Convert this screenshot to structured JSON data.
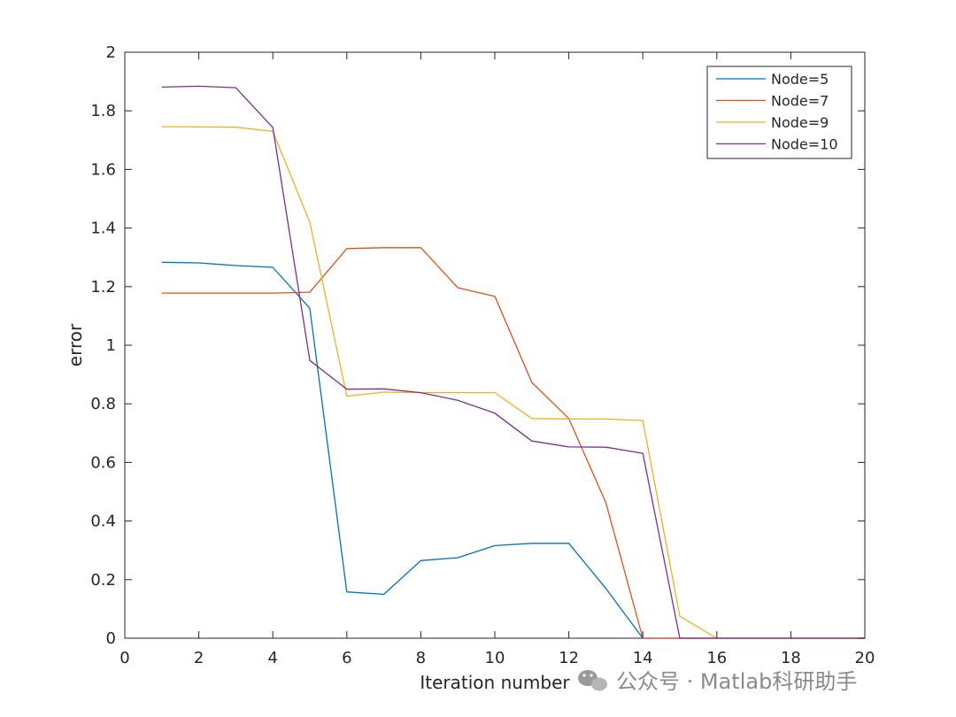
{
  "chart_data": {
    "type": "line",
    "title": "",
    "xlabel": "Iteration number",
    "ylabel": "error",
    "xlim": [
      0,
      20
    ],
    "ylim": [
      0,
      2
    ],
    "xticks": [
      0,
      2,
      4,
      6,
      8,
      10,
      12,
      14,
      16,
      18,
      20
    ],
    "yticks": [
      0,
      0.2,
      0.4,
      0.6,
      0.8,
      1,
      1.2,
      1.4,
      1.6,
      1.8,
      2
    ],
    "xtick_labels": [
      "0",
      "2",
      "4",
      "6",
      "8",
      "10",
      "12",
      "14",
      "16",
      "18",
      "20"
    ],
    "ytick_labels": [
      "0",
      "0.2",
      "0.4",
      "0.6",
      "0.8",
      "1",
      "1.2",
      "1.4",
      "1.6",
      "1.8",
      "2"
    ],
    "grid": false,
    "legend_position": "top-right",
    "x": [
      1,
      2,
      3,
      4,
      5,
      6,
      7,
      8,
      9,
      10,
      11,
      12,
      13,
      14,
      15,
      16,
      17,
      18,
      19,
      20
    ],
    "series": [
      {
        "name": "Node=5",
        "color": "#0072BD",
        "values": [
          1.283,
          1.281,
          1.272,
          1.266,
          1.126,
          0.158,
          0.15,
          0.265,
          0.275,
          0.316,
          0.324,
          0.324,
          0.17,
          0.0,
          0.0,
          0.0,
          0.0,
          0.0,
          0.0,
          0.0
        ]
      },
      {
        "name": "Node=7",
        "color": "#D95319",
        "values": [
          1.178,
          1.178,
          1.178,
          1.178,
          1.181,
          1.33,
          1.333,
          1.333,
          1.196,
          1.167,
          0.873,
          0.75,
          0.463,
          0.0,
          0.0,
          0.0,
          0.0,
          0.0,
          0.0,
          0.0
        ]
      },
      {
        "name": "Node=9",
        "color": "#EDB120",
        "values": [
          1.746,
          1.745,
          1.744,
          1.73,
          1.42,
          0.826,
          0.84,
          0.838,
          0.838,
          0.838,
          0.75,
          0.748,
          0.748,
          0.743,
          0.075,
          0.0,
          0.0,
          0.0,
          0.0,
          0.0
        ]
      },
      {
        "name": "Node=10",
        "color": "#7E2F8E",
        "values": [
          1.881,
          1.884,
          1.879,
          1.743,
          0.948,
          0.85,
          0.851,
          0.838,
          0.812,
          0.768,
          0.673,
          0.653,
          0.652,
          0.631,
          0.0,
          0.0,
          0.0,
          0.0,
          0.0,
          0.0
        ]
      }
    ]
  },
  "watermark": {
    "text": "公众号 · Matlab科研助手",
    "icon": "wechat-icon"
  }
}
